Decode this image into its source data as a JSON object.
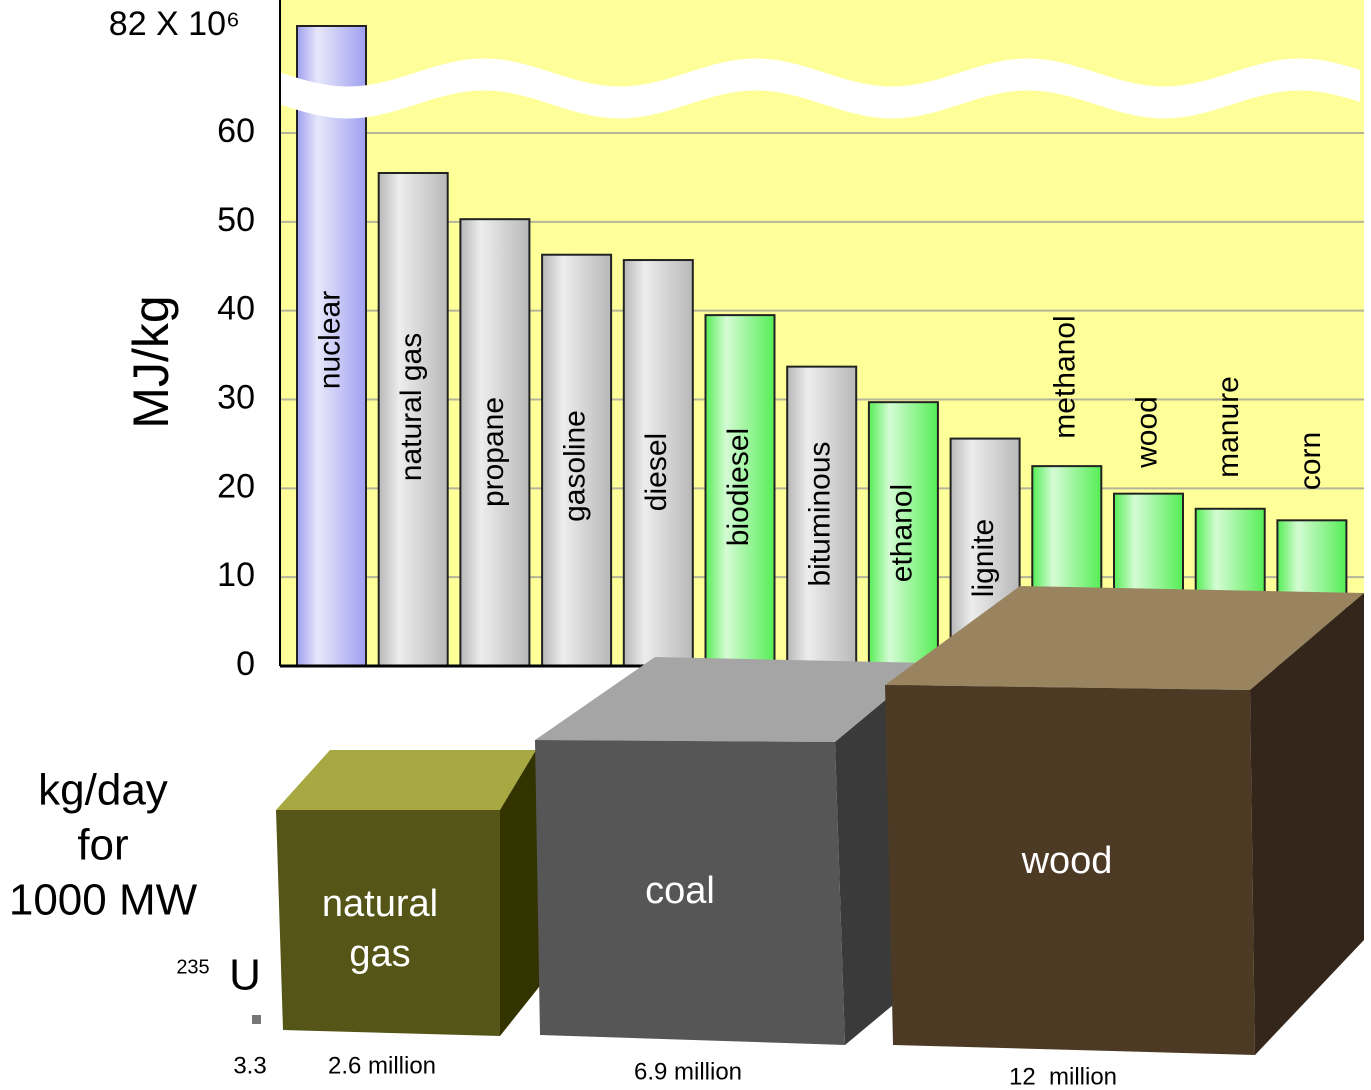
{
  "chart_data": {
    "type": "bar",
    "y_label": "MJ/kg",
    "categories": [
      "nuclear",
      "natural gas",
      "propane",
      "gasoline",
      "diesel",
      "biodiesel",
      "bituminous",
      "ethanol",
      "lignite",
      "methanol",
      "wood",
      "manure",
      "corn"
    ],
    "values": [
      82000000,
      55.5,
      50.3,
      46.3,
      45.7,
      39.5,
      33.7,
      29.7,
      25.6,
      22.5,
      19.4,
      17.7,
      16.4
    ],
    "colors": [
      "#a0a0f0",
      "#b8b8b8",
      "#b8b8b8",
      "#b8b8b8",
      "#b8b8b8",
      "#55ee55",
      "#b8b8b8",
      "#55ee55",
      "#b8b8b8",
      "#55ee55",
      "#55ee55",
      "#55ee55",
      "#55ee55"
    ],
    "ylim": [
      0,
      82000000
    ],
    "axis_break": 64,
    "yticks": [
      0,
      10,
      20,
      30,
      40,
      50,
      60,
      {
        "value": 82000000,
        "label": "82 X 10⁶"
      }
    ],
    "grid": true,
    "background": "#ffff99"
  },
  "mass_comparison": {
    "title": [
      "kg/day",
      "for",
      "1000 MW"
    ],
    "items": [
      {
        "name": "U",
        "isotope": "235",
        "amount": "3.3"
      },
      {
        "name": [
          "natural",
          "gas"
        ],
        "amount": "2.6 million"
      },
      {
        "name": [
          "coal"
        ],
        "amount": "6.9 million"
      },
      {
        "name": [
          "wood"
        ],
        "amount": "12  million"
      }
    ]
  }
}
